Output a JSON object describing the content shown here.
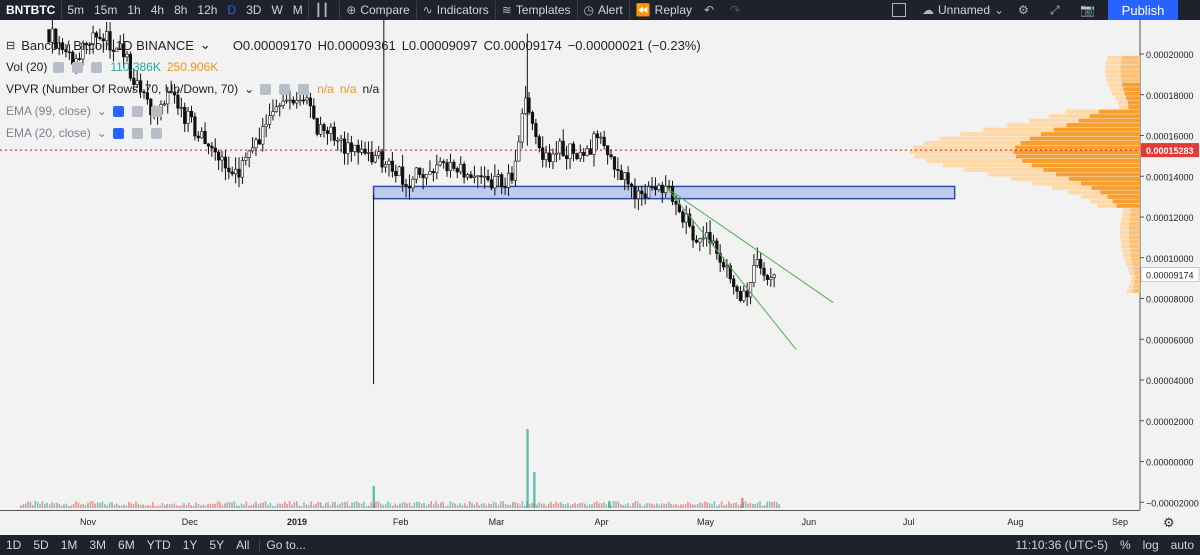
{
  "toolbar": {
    "symbol": "BNTBTC",
    "intervals": [
      "5m",
      "15m",
      "1h",
      "4h",
      "8h",
      "12h",
      "D",
      "3D",
      "W",
      "M"
    ],
    "active_interval": "D",
    "compare": "Compare",
    "indicators": "Indicators",
    "templates": "Templates",
    "alert": "Alert",
    "replay": "Replay",
    "layout_name": "Unnamed",
    "publish": "Publish"
  },
  "legend": {
    "title": "Bancor / Bitcoin  1D  BINANCE",
    "open": "O0.00009170",
    "high": "H0.00009361",
    "low": "L0.00009097",
    "close": "C0.00009174",
    "change": "−0.00000021 (−0.23%)",
    "vol_label": "Vol (20)",
    "vol_value": "110.386K",
    "vol_ma": "250.906K",
    "vpvr": "VPVR (Number Of Rows, 70, Up/Down, 70)",
    "vpvr_na1": "n/a",
    "vpvr_na2": "n/a",
    "vpvr_na3": "n/a",
    "ema99": "EMA (99, close)",
    "ema20": "EMA (20, close)"
  },
  "bottom": {
    "ranges": [
      "1D",
      "5D",
      "1M",
      "3M",
      "6M",
      "YTD",
      "1Y",
      "5Y",
      "All"
    ],
    "goto": "Go to...",
    "clock": "11:10:36 (UTC-5)",
    "percent": "%",
    "log": "log",
    "auto": "auto"
  },
  "colors": {
    "up": "#26a69a",
    "down": "#ef5350",
    "candle": "#111111",
    "vpvr_up": "#f7931a",
    "vpvr_down": "#ffd9a8",
    "zone_fill": "#b8c8ee",
    "zone_border": "#1a3c9b",
    "wedge": "#4caf50",
    "price_line": "#e53935"
  },
  "chart_data": {
    "type": "candlestick",
    "y_ticks": [
      "0.00020000",
      "0.00018000",
      "0.00016000",
      "0.00014000",
      "0.00012000",
      "0.00010000",
      "0.00008000",
      "0.00006000",
      "0.00004000",
      "0.00002000",
      "0.00000000",
      "−0.00002000"
    ],
    "y_tick_values": [
      0.0002,
      0.00018,
      0.00016,
      0.00014,
      0.00012,
      0.0001,
      8e-05,
      6e-05,
      4e-05,
      2e-05,
      0.0,
      -2e-05
    ],
    "x_ticks": [
      "Nov",
      "Dec",
      "2019",
      "Feb",
      "Mar",
      "Apr",
      "May",
      "Jun",
      "Jul",
      "Aug",
      "Sep"
    ],
    "last_price": "0.00009174",
    "marked_price": "0.00015283",
    "close_path": [
      [
        "2018-10-20",
        0.000212
      ],
      [
        "2018-10-28",
        0.000198
      ],
      [
        "2018-11-05",
        0.00021
      ],
      [
        "2018-11-12",
        0.0002
      ],
      [
        "2018-11-20",
        0.00017
      ],
      [
        "2018-11-26",
        0.00018
      ],
      [
        "2018-12-02",
        0.000165
      ],
      [
        "2018-12-08",
        0.000152
      ],
      [
        "2018-12-15",
        0.00014
      ],
      [
        "2018-12-22",
        0.00016
      ],
      [
        "2018-12-28",
        0.000175
      ],
      [
        "2019-01-03",
        0.00018
      ],
      [
        "2019-01-08",
        0.000165
      ],
      [
        "2019-01-14",
        0.000158
      ],
      [
        "2019-01-20",
        0.00015
      ],
      [
        "2019-01-27",
        0.000148
      ],
      [
        "2019-02-03",
        0.000138
      ],
      [
        "2019-02-10",
        0.000142
      ],
      [
        "2019-02-16",
        0.000147
      ],
      [
        "2019-02-22",
        0.00014
      ],
      [
        "2019-03-01",
        0.000136
      ],
      [
        "2019-03-06",
        0.00014
      ],
      [
        "2019-03-10",
        0.000178
      ],
      [
        "2019-03-14",
        0.00015
      ],
      [
        "2019-03-20",
        0.000153
      ],
      [
        "2019-03-26",
        0.00015
      ],
      [
        "2019-04-01",
        0.00016
      ],
      [
        "2019-04-06",
        0.00014
      ],
      [
        "2019-04-12",
        0.000132
      ],
      [
        "2019-04-18",
        0.000133
      ],
      [
        "2019-04-22",
        0.00013
      ],
      [
        "2019-04-27",
        0.000114
      ],
      [
        "2019-05-03",
        0.000107
      ],
      [
        "2019-05-08",
        9.7e-05
      ],
      [
        "2019-05-12",
        8.3e-05
      ],
      [
        "2019-05-14",
        8e-05
      ],
      [
        "2019-05-16",
        9.8e-05
      ],
      [
        "2019-05-18",
        9.4e-05
      ],
      [
        "2019-05-22",
        9.2e-05
      ]
    ],
    "volume_spikes": [
      [
        "2019-01-24",
        22
      ],
      [
        "2019-03-10",
        79
      ],
      [
        "2019-03-12",
        36
      ],
      [
        "2019-04-03",
        7
      ],
      [
        "2019-05-12",
        10
      ]
    ],
    "support_zone": {
      "low": 0.000129,
      "high": 0.000135,
      "from": "2019-01-24",
      "to": "2019-07-14"
    },
    "falling_wedge": {
      "upper": [
        [
          "2019-04-20",
          0.000134
        ],
        [
          "2019-06-08",
          7.8e-05
        ]
      ],
      "lower": [
        [
          "2019-04-20",
          0.000134
        ],
        [
          "2019-05-28",
          5.5e-05
        ]
      ]
    },
    "xlabel": "",
    "ylabel": ""
  }
}
